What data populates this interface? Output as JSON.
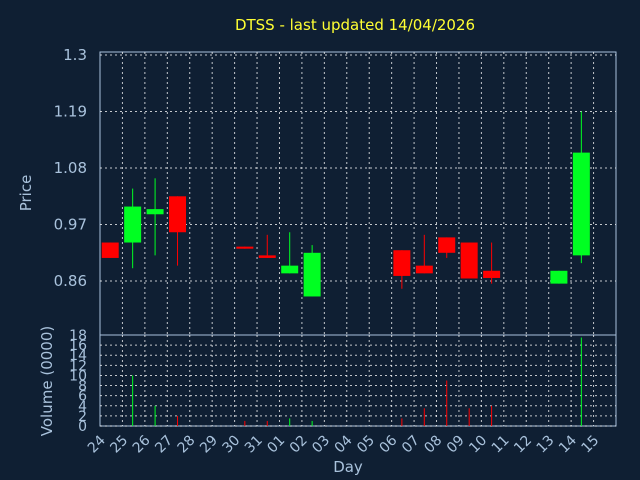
{
  "chart_data": {
    "type": "candlestick",
    "title": "DTSS - last updated 14/04/2026",
    "ylabel_price": "Price",
    "ylabel_volume": "Volume (0000)",
    "xlabel": "Day",
    "price_ticks": [
      "1.3",
      "1.19",
      "1.08",
      "0.97",
      "0.86"
    ],
    "price_ylim": [
      0.755,
      1.3
    ],
    "volume_ticks": [
      "18",
      "16",
      "14",
      "12",
      "10",
      "8",
      "6",
      "4",
      "2",
      "0"
    ],
    "volume_ylim": [
      0,
      18
    ],
    "x_labels": [
      "24",
      "25",
      "26",
      "27",
      "28",
      "29",
      "30",
      "31",
      "01",
      "02",
      "03",
      "04",
      "05",
      "06",
      "07",
      "08",
      "09",
      "10",
      "11",
      "12",
      "13",
      "14",
      "15"
    ],
    "candles": [
      {
        "day": "24",
        "open": 0.935,
        "close": 0.905,
        "high": 0.935,
        "low": 0.905,
        "volume": 0
      },
      {
        "day": "25",
        "open": 0.935,
        "close": 1.005,
        "high": 1.04,
        "low": 0.885,
        "volume": 10
      },
      {
        "day": "26",
        "open": 0.99,
        "close": 1.0,
        "high": 1.06,
        "low": 0.91,
        "volume": 4
      },
      {
        "day": "27",
        "open": 1.025,
        "close": 0.955,
        "high": 1.025,
        "low": 0.89,
        "volume": 2
      },
      {
        "day": "30",
        "open": 0.927,
        "close": 0.923,
        "high": 0.927,
        "low": 0.923,
        "volume": 1
      },
      {
        "day": "31",
        "open": 0.91,
        "close": 0.905,
        "high": 0.95,
        "low": 0.905,
        "volume": 1
      },
      {
        "day": "01",
        "open": 0.875,
        "close": 0.89,
        "high": 0.955,
        "low": 0.875,
        "volume": 1.5
      },
      {
        "day": "02",
        "open": 0.83,
        "close": 0.915,
        "high": 0.93,
        "low": 0.83,
        "volume": 1
      },
      {
        "day": "06",
        "open": 0.92,
        "close": 0.87,
        "high": 0.92,
        "low": 0.845,
        "volume": 1.5
      },
      {
        "day": "07",
        "open": 0.89,
        "close": 0.875,
        "high": 0.95,
        "low": 0.875,
        "volume": 3.5
      },
      {
        "day": "08",
        "open": 0.945,
        "close": 0.915,
        "high": 0.945,
        "low": 0.905,
        "volume": 9
      },
      {
        "day": "09",
        "open": 0.935,
        "close": 0.865,
        "high": 0.935,
        "low": 0.865,
        "volume": 3.5
      },
      {
        "day": "10",
        "open": 0.88,
        "close": 0.866,
        "high": 0.935,
        "low": 0.855,
        "volume": 4
      },
      {
        "day": "13",
        "open": 0.855,
        "close": 0.88,
        "high": 0.88,
        "low": 0.855,
        "volume": 0
      },
      {
        "day": "14",
        "open": 0.91,
        "close": 1.11,
        "high": 1.19,
        "low": 0.895,
        "volume": 17.5
      }
    ],
    "up_color": "#00ff22",
    "down_color": "#ff0000",
    "grid": true
  }
}
